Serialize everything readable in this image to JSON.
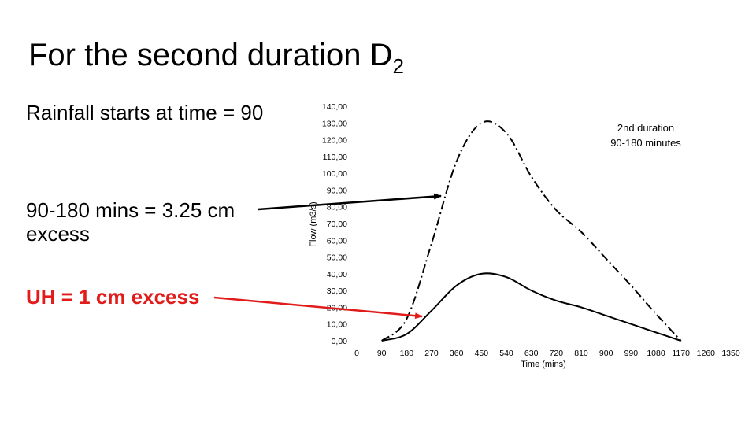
{
  "slide": {
    "title_main": "For the second duration D",
    "title_sub": "2",
    "rain_text": "Rainfall starts at time = 90",
    "excess_text": "90-180 mins = 3.25 cm excess",
    "uh_text": "UH = 1 cm excess",
    "arrow_colors": {
      "excess": "#000000",
      "uh": "#e21b1b"
    }
  },
  "chart_data": {
    "type": "line",
    "xlabel": "Time (mins)",
    "ylabel": "Flow (m3/s)",
    "x_ticks": [
      "0",
      "90",
      "180",
      "270",
      "360",
      "450",
      "540",
      "630",
      "720",
      "810",
      "900",
      "990",
      "1080",
      "1170",
      "1260",
      "1350"
    ],
    "y_ticks": [
      "0,00",
      "10,00",
      "20,00",
      "30,00",
      "40,00",
      "50,00",
      "60,00",
      "70,00",
      "80,00",
      "90,00",
      "100,00",
      "110,00",
      "120,00",
      "130,00",
      "140,00"
    ],
    "xlim": [
      0,
      1350
    ],
    "ylim": [
      0,
      140
    ],
    "grid": false,
    "annotation": [
      "2nd duration",
      "90-180 minutes"
    ],
    "series": [
      {
        "style": "solid",
        "x": [
          90,
          180,
          270,
          360,
          450,
          540,
          630,
          720,
          810,
          900,
          990,
          1080,
          1170
        ],
        "y": [
          0,
          4,
          18,
          33,
          40,
          38,
          30,
          24,
          20,
          15,
          10,
          5,
          0
        ]
      },
      {
        "style": "dash-dot",
        "x": [
          90,
          180,
          270,
          360,
          450,
          540,
          630,
          720,
          810,
          900,
          990,
          1080,
          1170
        ],
        "y": [
          0,
          13,
          58,
          107,
          130,
          124,
          98,
          78,
          65,
          49,
          33,
          16,
          0
        ]
      }
    ]
  }
}
